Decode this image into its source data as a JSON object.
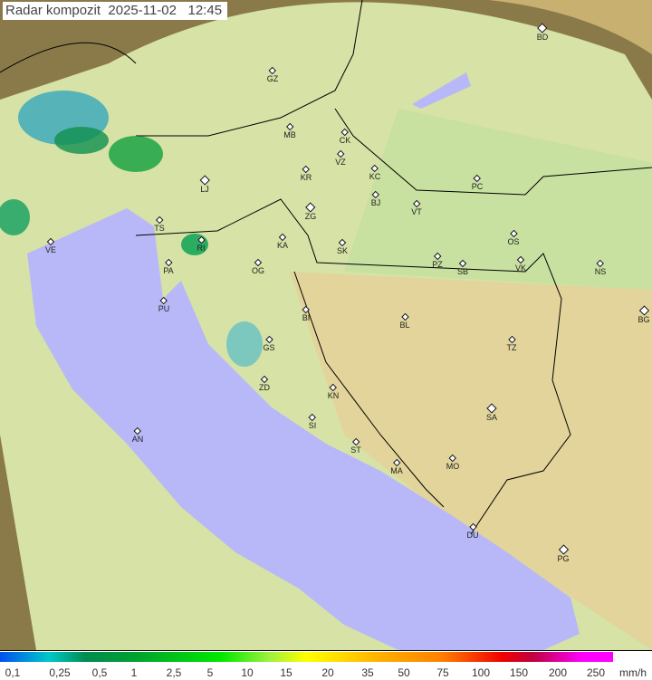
{
  "title": "Radar kompozit  2025-11-02   12:45",
  "colors": {
    "sea": "#b8b8f8",
    "land": "#d8e4a8",
    "outside": "#a09060",
    "rain_light": "#00a0c8",
    "rain_green": "#10a040"
  },
  "cities": [
    "BD",
    "GZ",
    "MB",
    "CK",
    "VZ",
    "KR",
    "KC",
    "PC",
    "LJ",
    "BJ",
    "ZG",
    "VT",
    "TS",
    "VE",
    "KA",
    "SK",
    "OS",
    "RI",
    "PA",
    "PZ",
    "SB",
    "VK",
    "NS",
    "OG",
    "PU",
    "BG",
    "BI",
    "BL",
    "TZ",
    "GS",
    "ZD",
    "KN",
    "SA",
    "SI",
    "AN",
    "ST",
    "MA",
    "MO",
    "DU",
    "PG"
  ],
  "legend": {
    "ticks": [
      "0,1",
      "0,25",
      "0,5",
      "1",
      "2,5",
      "5",
      "10",
      "15",
      "20",
      "35",
      "50",
      "75",
      "100",
      "150",
      "200",
      "250"
    ],
    "unit": "mm/h"
  }
}
